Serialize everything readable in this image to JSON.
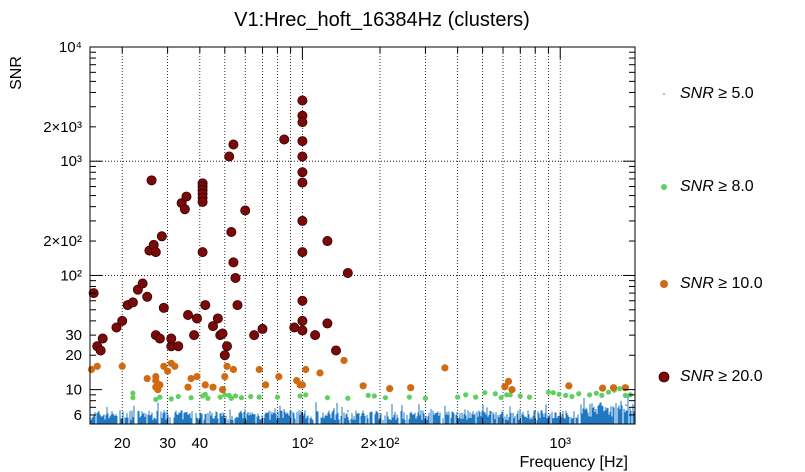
{
  "chart_data": {
    "type": "scatter",
    "title": "V1:Hrec_hoft_16384Hz (clusters)",
    "xlabel": "Frequency [Hz]",
    "ylabel": "SNR",
    "xscale": "log",
    "yscale": "log",
    "xlim": [
      15,
      1950
    ],
    "ylim": [
      5,
      10000
    ],
    "grid": true,
    "legend_position": "right",
    "x_ticks": [
      {
        "value": 20,
        "label": "20"
      },
      {
        "value": 30,
        "label": "30"
      },
      {
        "value": 40,
        "label": "40"
      },
      {
        "value": 100,
        "label": "10²"
      },
      {
        "value": 200,
        "label": "2×10²"
      },
      {
        "value": 1000,
        "label": "10³"
      }
    ],
    "y_ticks": [
      {
        "value": 6,
        "label": "6"
      },
      {
        "value": 10,
        "label": "10"
      },
      {
        "value": 20,
        "label": "20"
      },
      {
        "value": 30,
        "label": "30"
      },
      {
        "value": 100,
        "label": "10²"
      },
      {
        "value": 200,
        "label": "2×10²"
      },
      {
        "value": 1000,
        "label": "10³"
      },
      {
        "value": 2000,
        "label": "2×10³"
      },
      {
        "value": 10000,
        "label": "10⁴"
      }
    ],
    "series": [
      {
        "name": "SNR ≥ 5.0",
        "color": "#1f78c1",
        "marker": "tiny-dot",
        "note": "dense background of low-SNR clusters across the whole band",
        "points": [
          [
            15,
            5.6
          ],
          [
            40,
            6.1
          ],
          [
            80,
            6.3
          ],
          [
            150,
            6.5
          ],
          [
            400,
            6.2
          ],
          [
            800,
            6.4
          ],
          [
            1500,
            6.9
          ],
          [
            1800,
            7.3
          ]
        ]
      },
      {
        "name": "SNR ≥ 8.0",
        "color": "#5fcf5f",
        "marker": "small-circle",
        "points": [
          [
            22,
            8.5
          ],
          [
            22,
            9.3
          ],
          [
            27,
            8.2
          ],
          [
            28,
            8.6
          ],
          [
            31,
            8.3
          ],
          [
            33,
            8.7
          ],
          [
            37,
            8.5
          ],
          [
            41,
            8.8
          ],
          [
            42,
            9.1
          ],
          [
            43,
            8.4
          ],
          [
            48,
            8.6
          ],
          [
            50,
            9.0
          ],
          [
            52,
            8.9
          ],
          [
            53,
            8.4
          ],
          [
            55,
            8.8
          ],
          [
            58,
            8.5
          ],
          [
            63,
            8.7
          ],
          [
            68,
            8.6
          ],
          [
            80,
            8.6
          ],
          [
            98,
            8.8
          ],
          [
            103,
            9.0
          ],
          [
            125,
            8.5
          ],
          [
            150,
            8.4
          ],
          [
            180,
            8.9
          ],
          [
            190,
            8.8
          ],
          [
            210,
            8.5
          ],
          [
            260,
            8.6
          ],
          [
            300,
            8.4
          ],
          [
            400,
            8.6
          ],
          [
            430,
            9.0
          ],
          [
            470,
            8.6
          ],
          [
            510,
            9.4
          ],
          [
            560,
            9.2
          ],
          [
            590,
            8.5
          ],
          [
            620,
            9.0
          ],
          [
            640,
            9.0
          ],
          [
            700,
            8.8
          ],
          [
            760,
            8.6
          ],
          [
            900,
            9.5
          ],
          [
            940,
            9.4
          ],
          [
            990,
            9.1
          ],
          [
            1050,
            8.9
          ],
          [
            1110,
            8.7
          ],
          [
            1180,
            9.2
          ],
          [
            1300,
            9.0
          ],
          [
            1380,
            9.3
          ],
          [
            1450,
            8.9
          ],
          [
            1540,
            9.5
          ],
          [
            1620,
            9.9
          ],
          [
            1700,
            10.2
          ],
          [
            1790,
            8.9
          ],
          [
            1870,
            9.0
          ]
        ]
      },
      {
        "name": "SNR ≥ 10.0",
        "color": "#d06b12",
        "marker": "circle",
        "points": [
          [
            15.2,
            15
          ],
          [
            16,
            16
          ],
          [
            20,
            16
          ],
          [
            25,
            12.5
          ],
          [
            27,
            10.5
          ],
          [
            27,
            12
          ],
          [
            27,
            13
          ],
          [
            27.5,
            10
          ],
          [
            28,
            11
          ],
          [
            29,
            16
          ],
          [
            30,
            14.5
          ],
          [
            31,
            17
          ],
          [
            32,
            16
          ],
          [
            36,
            10.5
          ],
          [
            37,
            12.5
          ],
          [
            39,
            13
          ],
          [
            42,
            11
          ],
          [
            45,
            10.5
          ],
          [
            49,
            10
          ],
          [
            50,
            13
          ],
          [
            51,
            16
          ],
          [
            54,
            15
          ],
          [
            68,
            15
          ],
          [
            72,
            11
          ],
          [
            81,
            13
          ],
          [
            95,
            12
          ],
          [
            98,
            11
          ],
          [
            100,
            11
          ],
          [
            103,
            15
          ],
          [
            117,
            14
          ],
          [
            145,
            18
          ],
          [
            172,
            10.8
          ],
          [
            218,
            10.2
          ],
          [
            263,
            10.4
          ],
          [
            357,
            15.5
          ],
          [
            610,
            10.6
          ],
          [
            630,
            11.8
          ],
          [
            650,
            10
          ],
          [
            1080,
            10.8
          ],
          [
            1460,
            10.3
          ],
          [
            1610,
            10.4
          ],
          [
            1790,
            10.4
          ]
        ]
      },
      {
        "name": "SNR ≥ 20.0",
        "color": "#7a0a0a",
        "marker": "large-circle",
        "points": [
          [
            15.5,
            70
          ],
          [
            16,
            24
          ],
          [
            16.5,
            22
          ],
          [
            16.8,
            28
          ],
          [
            19,
            35
          ],
          [
            20,
            40
          ],
          [
            21,
            55
          ],
          [
            22,
            58
          ],
          [
            23,
            75
          ],
          [
            24,
            85
          ],
          [
            25,
            65
          ],
          [
            25.5,
            165
          ],
          [
            26,
            680
          ],
          [
            26.5,
            185
          ],
          [
            27,
            160
          ],
          [
            27,
            30
          ],
          [
            28,
            28
          ],
          [
            28.5,
            220
          ],
          [
            29,
            52
          ],
          [
            31,
            24
          ],
          [
            31,
            28
          ],
          [
            33,
            24
          ],
          [
            34,
            430
          ],
          [
            35,
            380
          ],
          [
            35.5,
            490
          ],
          [
            36,
            45
          ],
          [
            38,
            30
          ],
          [
            39,
            42
          ],
          [
            41,
            160
          ],
          [
            41,
            640
          ],
          [
            41,
            600
          ],
          [
            41,
            560
          ],
          [
            41,
            520
          ],
          [
            41,
            480
          ],
          [
            41,
            440
          ],
          [
            42,
            55
          ],
          [
            45,
            36
          ],
          [
            47,
            42
          ],
          [
            48,
            30
          ],
          [
            49,
            31
          ],
          [
            50,
            20
          ],
          [
            51,
            24
          ],
          [
            53,
            240
          ],
          [
            54,
            130
          ],
          [
            55,
            95
          ],
          [
            56,
            55
          ],
          [
            52,
            1100
          ],
          [
            54,
            1400
          ],
          [
            60,
            370
          ],
          [
            65,
            30
          ],
          [
            70,
            34
          ],
          [
            85,
            1550
          ],
          [
            93,
            35
          ],
          [
            100,
            3400
          ],
          [
            100,
            2500
          ],
          [
            100,
            2200
          ],
          [
            100,
            1500
          ],
          [
            100,
            1100
          ],
          [
            100,
            800
          ],
          [
            100,
            650
          ],
          [
            100,
            300
          ],
          [
            100,
            160
          ],
          [
            100,
            60
          ],
          [
            100,
            40
          ],
          [
            100,
            33
          ],
          [
            112,
            30
          ],
          [
            125,
            200
          ],
          [
            125,
            38
          ],
          [
            135,
            22
          ],
          [
            150,
            105
          ]
        ]
      }
    ]
  },
  "legend": [
    {
      "prefix": "SNR",
      "suffix": " ≥ 5.0"
    },
    {
      "prefix": "SNR",
      "suffix": " ≥ 8.0"
    },
    {
      "prefix": "SNR",
      "suffix": " ≥ 10.0"
    },
    {
      "prefix": "SNR",
      "suffix": " ≥ 20.0"
    }
  ]
}
